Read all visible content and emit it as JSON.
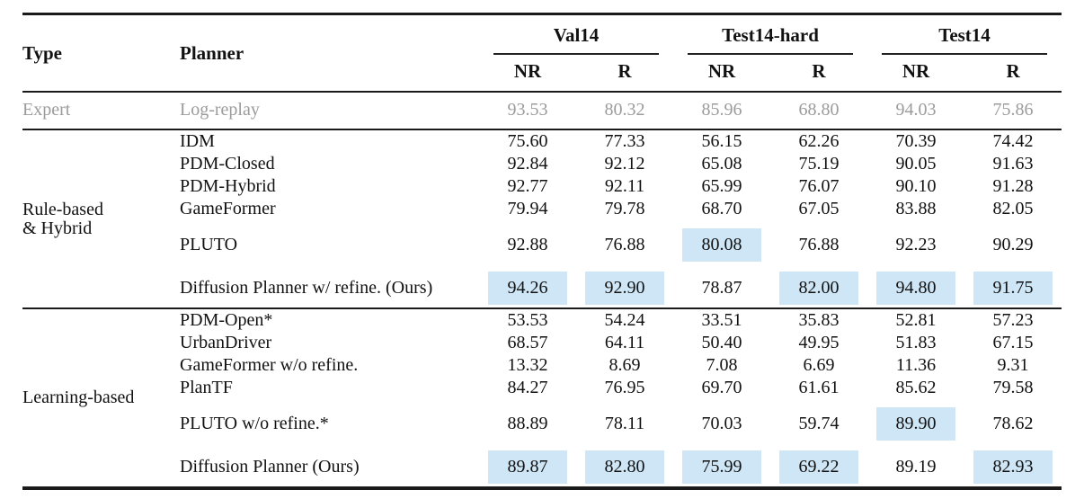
{
  "table": {
    "col_headers": {
      "type": "Type",
      "planner": "Planner"
    },
    "groups": [
      {
        "label": "Val14",
        "sub": [
          "NR",
          "R"
        ]
      },
      {
        "label": "Test14-hard",
        "sub": [
          "NR",
          "R"
        ]
      },
      {
        "label": "Test14",
        "sub": [
          "NR",
          "R"
        ]
      }
    ],
    "expert_row": {
      "type": "Expert",
      "planner": "Log-replay",
      "values": [
        "93.53",
        "80.32",
        "85.96",
        "68.80",
        "94.03",
        "75.86"
      ]
    },
    "sections": [
      {
        "type_label": "Rule-based\n& Hybrid",
        "rows": [
          {
            "planner": "IDM",
            "values": [
              "75.60",
              "77.33",
              "56.15",
              "62.26",
              "70.39",
              "74.42"
            ],
            "highlights": [],
            "spaced": false
          },
          {
            "planner": "PDM-Closed",
            "values": [
              "92.84",
              "92.12",
              "65.08",
              "75.19",
              "90.05",
              "91.63"
            ],
            "highlights": [],
            "spaced": false
          },
          {
            "planner": "PDM-Hybrid",
            "values": [
              "92.77",
              "92.11",
              "65.99",
              "76.07",
              "90.10",
              "91.28"
            ],
            "highlights": [],
            "spaced": false
          },
          {
            "planner": "GameFormer",
            "values": [
              "79.94",
              "79.78",
              "68.70",
              "67.05",
              "83.88",
              "82.05"
            ],
            "highlights": [],
            "spaced": false
          },
          {
            "planner": "PLUTO",
            "values": [
              "92.88",
              "76.88",
              "80.08",
              "76.88",
              "92.23",
              "90.29"
            ],
            "highlights": [
              2
            ],
            "spaced": true
          },
          {
            "planner": "Diffusion Planner w/ refine. (Ours)",
            "values": [
              "94.26",
              "92.90",
              "78.87",
              "82.00",
              "94.80",
              "91.75"
            ],
            "highlights": [
              0,
              1,
              3,
              4,
              5
            ],
            "spaced": true
          }
        ]
      },
      {
        "type_label": "Learning-based",
        "rows": [
          {
            "planner": "PDM-Open*",
            "values": [
              "53.53",
              "54.24",
              "33.51",
              "35.83",
              "52.81",
              "57.23"
            ],
            "highlights": [],
            "spaced": false
          },
          {
            "planner": "UrbanDriver",
            "values": [
              "68.57",
              "64.11",
              "50.40",
              "49.95",
              "51.83",
              "67.15"
            ],
            "highlights": [],
            "spaced": false
          },
          {
            "planner": "GameFormer w/o refine.",
            "values": [
              "13.32",
              "8.69",
              "7.08",
              "6.69",
              "11.36",
              "9.31"
            ],
            "highlights": [],
            "spaced": false
          },
          {
            "planner": "PlanTF",
            "values": [
              "84.27",
              "76.95",
              "69.70",
              "61.61",
              "85.62",
              "79.58"
            ],
            "highlights": [],
            "spaced": false
          },
          {
            "planner": "PLUTO w/o refine.*",
            "values": [
              "88.89",
              "78.11",
              "70.03",
              "59.74",
              "89.90",
              "78.62"
            ],
            "highlights": [
              4
            ],
            "spaced": true
          },
          {
            "planner": "Diffusion Planner (Ours)",
            "values": [
              "89.87",
              "82.80",
              "75.99",
              "69.22",
              "89.19",
              "82.93"
            ],
            "highlights": [
              0,
              1,
              2,
              3,
              5
            ],
            "spaced": true
          }
        ]
      }
    ]
  },
  "colors": {
    "highlight": "#cfe6f6",
    "expert_text": "#9b9b9b",
    "rule": "#1a1a1a"
  }
}
